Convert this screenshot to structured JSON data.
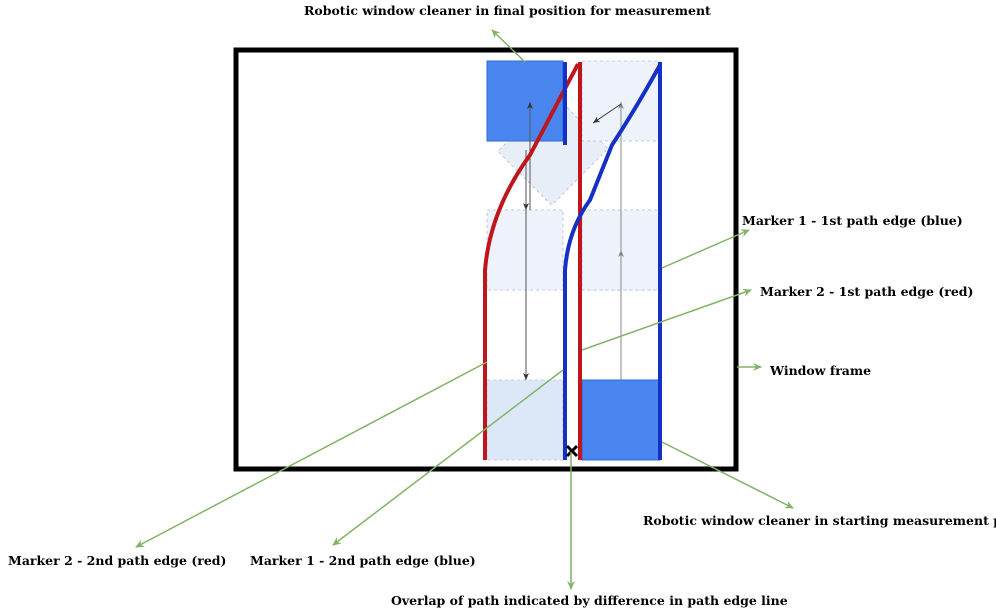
{
  "labels": {
    "final_position": "Robotic window cleaner in final position for measurement",
    "marker1_first": "Marker 1 - 1st path edge (blue)",
    "marker2_first": "Marker 2 - 1st path edge (red)",
    "window_frame": "Window frame",
    "starting_position": "Robotic window cleaner in starting measurement position",
    "marker2_second": "Marker 2 - 2nd path edge (red)",
    "marker1_second": "Marker 1 - 2nd path edge (blue)",
    "overlap": "Overlap of path indicated by difference in path edge line"
  },
  "colors": {
    "frame": "#000000",
    "red_marker": "#c0151b",
    "blue_marker": "#1530c4",
    "robot_fill": "#4a86f0",
    "robot_shadow": "#dce8f8",
    "callout": "#82b366",
    "motion_arrow": "#444444"
  }
}
